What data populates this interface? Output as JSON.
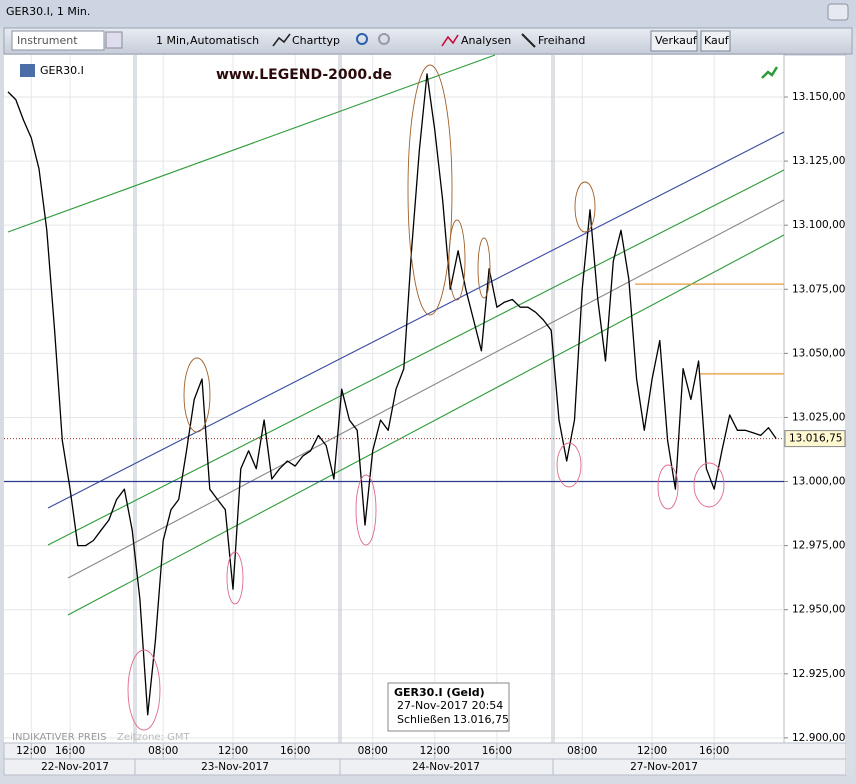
{
  "window": {
    "title": "GER30.I, 1 Min."
  },
  "toolbar": {
    "instrument": "Instrument",
    "interval": "1 Min,",
    "mode": "Automatisch",
    "charttyp": "Charttyp",
    "analysen": "Analysen",
    "freihand": "Freihand",
    "verkauf": "Verkauf",
    "kauf": "Kauf"
  },
  "chart_data": {
    "type": "line",
    "watermark": "www.LEGEND-2000.de",
    "categories": [
      null,
      null,
      null,
      "12:00",
      null,
      null,
      null,
      null,
      "16:00",
      null,
      null,
      null,
      null,
      null,
      null,
      null,
      null,
      null,
      null,
      null,
      "08:00",
      null,
      null,
      null,
      null,
      null,
      null,
      null,
      null,
      "12:00",
      null,
      null,
      null,
      null,
      null,
      null,
      null,
      "16:00",
      null,
      null,
      null,
      null,
      null,
      null,
      null,
      null,
      null,
      "08:00",
      null,
      null,
      null,
      null,
      null,
      null,
      null,
      "12:00",
      null,
      null,
      null,
      null,
      null,
      null,
      null,
      "16:00",
      null,
      null,
      null,
      null,
      null,
      null,
      null,
      null,
      null,
      null,
      "08:00",
      null,
      null,
      null,
      null,
      null,
      null,
      null,
      null,
      "12:00",
      null,
      null,
      null,
      null,
      null,
      null,
      null,
      "16:00",
      null,
      null,
      null,
      null,
      null,
      null,
      null,
      null
    ],
    "series": [
      {
        "name": "GER30.I",
        "color": "#000000",
        "values": [
          13152,
          13149,
          13141,
          13134,
          13122,
          13098,
          13059,
          13016,
          12997,
          12975,
          12975,
          12977,
          12981,
          12985,
          12993,
          12997,
          12981,
          12954,
          12909,
          12938,
          12977,
          12989,
          12993,
          13012,
          13032,
          13040,
          12997,
          12993,
          12989,
          12958,
          13005,
          13012,
          13005,
          13024,
          13001,
          13005,
          13008,
          13006,
          13010,
          13012,
          13018,
          13014,
          13001,
          13036,
          13024,
          13020,
          12983,
          13012,
          13024,
          13020,
          13036,
          13044,
          13090,
          13129,
          13159,
          13137,
          13110,
          13075,
          13090,
          13075,
          13063,
          13051,
          13083,
          13068,
          13070,
          13071,
          13068,
          13068,
          13066,
          13063,
          13059,
          13024,
          13008,
          13024,
          13075,
          13106,
          13071,
          13047,
          13086,
          13098,
          13079,
          13040,
          13020,
          13040,
          13055,
          13016,
          12997,
          13044,
          13032,
          13047,
          13005,
          12997,
          13012,
          13026,
          13020,
          13020,
          13019,
          13018,
          13021,
          13016.75
        ]
      }
    ],
    "ylim": [
      12898,
      13166
    ],
    "yticks": [
      {
        "value": 12900,
        "label": "12.900,00"
      },
      {
        "value": 12925,
        "label": "12.925,00"
      },
      {
        "value": 12950,
        "label": "12.950,00"
      },
      {
        "value": 12975,
        "label": "12.975,00"
      },
      {
        "value": 13000,
        "label": "13.000,00"
      },
      {
        "value": 13025,
        "label": "13.025,00"
      },
      {
        "value": 13050,
        "label": "13.050,00"
      },
      {
        "value": 13075,
        "label": "13.075,00"
      },
      {
        "value": 13100,
        "label": "13.100,00"
      },
      {
        "value": 13125,
        "label": "13.125,00"
      },
      {
        "value": 13150,
        "label": "13.150,00"
      }
    ],
    "grid": true,
    "levels": [
      {
        "value": 13000,
        "color": "#2b3a8c"
      },
      {
        "value": 13077,
        "color": "#e89a3a"
      },
      {
        "value": 13042,
        "color": "#e89a3a"
      }
    ],
    "last_price": {
      "value": 13016.75,
      "label": "13.016,75",
      "color": "#a0302a"
    },
    "date_labels": [
      "22-Nov-2017",
      "23-Nov-2017",
      "24-Nov-2017",
      "27-Nov-2017"
    ],
    "footer": [
      "INDIKATIVER PREIS",
      "Zeitzone: GMT"
    ],
    "tooltip": {
      "title": "GER30.I (Geld)",
      "time": "27-Nov-2017 20:54",
      "label": "Schließen",
      "value": "13.016,75"
    }
  }
}
